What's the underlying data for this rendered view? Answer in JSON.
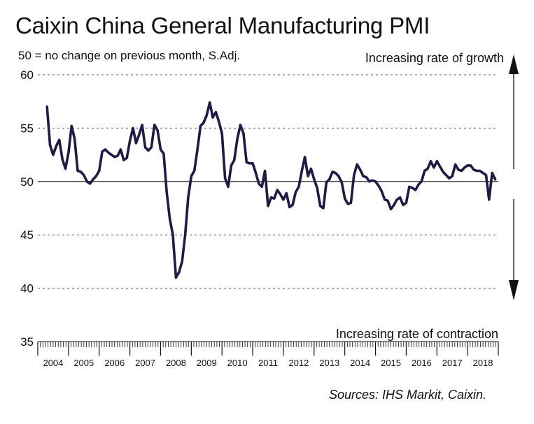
{
  "header": {
    "title": "Caixin China General Manufacturing PMI",
    "subtitle": "50 = no change on previous month, S.Adj."
  },
  "footer": {
    "sources": "Sources: IHS Markit, Caixin."
  },
  "chart_data": {
    "type": "line",
    "title": "Caixin China General Manufacturing PMI",
    "subtitle": "50 = no change on previous month, S.Adj.",
    "xlabel": "",
    "ylabel": "",
    "ylim": [
      35,
      60
    ],
    "yticks": [
      35,
      40,
      45,
      50,
      55,
      60
    ],
    "xlim": [
      2004.0,
      2019.0
    ],
    "year_labels": [
      "2004",
      "2005",
      "2006",
      "2007",
      "2008",
      "2009",
      "2010",
      "2011",
      "2012",
      "2013",
      "2014",
      "2015",
      "2016",
      "2017",
      "2018"
    ],
    "reference_line": 50,
    "grid": "dashed horizontal at 40, 45, 55, 60",
    "annotations": {
      "upper": "Increasing rate of growth",
      "lower": "Increasing rate of contraction"
    },
    "line_color": "#1f1a47",
    "series": [
      {
        "name": "",
        "x": [
          2004.3,
          2004.4,
          2004.5,
          2004.6,
          2004.7,
          2004.8,
          2004.9,
          2005.0,
          2005.1,
          2005.2,
          2005.3,
          2005.4,
          2005.5,
          2005.6,
          2005.7,
          2005.8,
          2005.9,
          2006.0,
          2006.1,
          2006.2,
          2006.3,
          2006.4,
          2006.5,
          2006.6,
          2006.7,
          2006.8,
          2006.9,
          2007.0,
          2007.1,
          2007.2,
          2007.3,
          2007.4,
          2007.5,
          2007.6,
          2007.7,
          2007.8,
          2007.9,
          2008.0,
          2008.1,
          2008.2,
          2008.3,
          2008.4,
          2008.5,
          2008.6,
          2008.7,
          2008.8,
          2008.9,
          2009.0,
          2009.1,
          2009.2,
          2009.3,
          2009.4,
          2009.5,
          2009.6,
          2009.7,
          2009.8,
          2009.9,
          2010.0,
          2010.1,
          2010.2,
          2010.3,
          2010.4,
          2010.5,
          2010.6,
          2010.7,
          2010.8,
          2010.9,
          2011.0,
          2011.1,
          2011.2,
          2011.3,
          2011.4,
          2011.5,
          2011.6,
          2011.7,
          2011.8,
          2011.9,
          2012.0,
          2012.1,
          2012.2,
          2012.3,
          2012.4,
          2012.5,
          2012.6,
          2012.7,
          2012.8,
          2012.9,
          2013.0,
          2013.1,
          2013.2,
          2013.3,
          2013.4,
          2013.5,
          2013.6,
          2013.7,
          2013.8,
          2013.9,
          2014.0,
          2014.1,
          2014.2,
          2014.3,
          2014.4,
          2014.5,
          2014.6,
          2014.7,
          2014.8,
          2014.9,
          2015.0,
          2015.1,
          2015.2,
          2015.3,
          2015.4,
          2015.5,
          2015.6,
          2015.7,
          2015.8,
          2015.9,
          2016.0,
          2016.1,
          2016.2,
          2016.3,
          2016.4,
          2016.5,
          2016.6,
          2016.7,
          2016.8,
          2016.9,
          2017.0,
          2017.1,
          2017.2,
          2017.3,
          2017.4,
          2017.5,
          2017.6,
          2017.7,
          2017.8,
          2017.9,
          2018.0,
          2018.1,
          2018.2,
          2018.3,
          2018.4,
          2018.5,
          2018.6,
          2018.7,
          2018.8,
          2018.9
        ],
        "values": [
          57.0,
          53.4,
          52.5,
          53.3,
          53.9,
          52.1,
          51.2,
          52.7,
          55.2,
          54.0,
          51.0,
          50.9,
          50.6,
          50.0,
          49.8,
          50.2,
          50.5,
          51.0,
          52.8,
          53.0,
          52.7,
          52.5,
          52.3,
          52.4,
          53.0,
          52.0,
          52.2,
          53.8,
          55.0,
          53.6,
          54.4,
          55.3,
          53.2,
          52.9,
          53.2,
          55.3,
          54.8,
          53.0,
          52.6,
          49.0,
          46.5,
          45.0,
          41.0,
          41.5,
          42.5,
          45.0,
          48.5,
          50.5,
          51.0,
          53.0,
          55.2,
          55.5,
          56.2,
          57.4,
          56.0,
          56.5,
          55.6,
          54.5,
          50.3,
          49.5,
          51.5,
          52.0,
          54.0,
          55.3,
          54.5,
          51.8,
          51.7,
          51.7,
          50.8,
          49.8,
          49.5,
          51.0,
          47.7,
          48.5,
          48.4,
          49.2,
          48.8,
          48.3,
          48.9,
          47.6,
          47.8,
          49.0,
          49.5,
          51.0,
          52.3,
          50.5,
          51.2,
          50.2,
          49.4,
          47.7,
          47.5,
          49.9,
          50.2,
          50.9,
          50.8,
          50.5,
          49.9,
          48.4,
          47.9,
          48.0,
          50.6,
          51.6,
          51.1,
          50.5,
          50.4,
          50.0,
          50.1,
          50.0,
          49.6,
          49.1,
          48.3,
          48.2,
          47.4,
          47.8,
          48.3,
          48.5,
          47.8,
          48.0,
          49.5,
          49.4,
          49.2,
          49.7,
          50.0,
          51.0,
          51.2,
          51.9,
          51.3,
          51.9,
          51.4,
          50.9,
          50.6,
          50.3,
          50.5,
          51.6,
          51.1,
          51.0,
          51.3,
          51.5,
          51.5,
          51.1,
          51.0,
          51.0,
          50.8,
          50.6,
          48.3,
          50.8,
          50.2
        ]
      }
    ]
  }
}
